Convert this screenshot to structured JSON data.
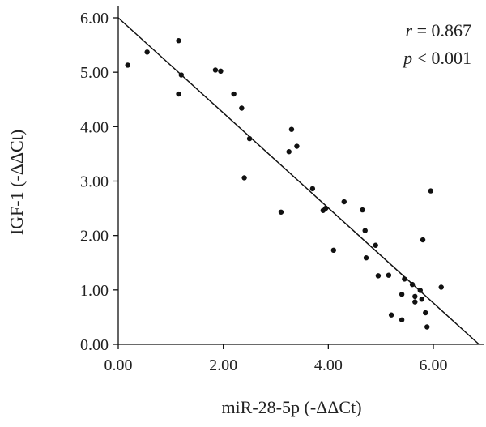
{
  "chart_data": {
    "type": "scatter",
    "xlabel": "miR-28-5p (-ΔΔCt)",
    "ylabel": "IGF-1 (-ΔΔCt)",
    "xlim": [
      0,
      7
    ],
    "ylim": [
      0,
      6.2
    ],
    "x_ticks": [
      "0.00",
      "2.00",
      "4.00",
      "6.00"
    ],
    "y_ticks": [
      "0.00",
      "1.00",
      "2.00",
      "3.00",
      "4.00",
      "5.00",
      "6.00"
    ],
    "annotation": {
      "r_symbol": "r",
      "r_text": " = 0.867",
      "p_symbol": "p",
      "p_text": " < 0.001"
    },
    "regression_line": {
      "x": [
        0.0,
        6.87
      ],
      "y": [
        6.0,
        0.0
      ]
    },
    "points": [
      {
        "x": 0.18,
        "y": 5.13
      },
      {
        "x": 0.55,
        "y": 5.37
      },
      {
        "x": 1.15,
        "y": 5.58
      },
      {
        "x": 1.2,
        "y": 4.95
      },
      {
        "x": 1.15,
        "y": 4.6
      },
      {
        "x": 1.85,
        "y": 5.04
      },
      {
        "x": 1.95,
        "y": 5.02
      },
      {
        "x": 2.2,
        "y": 4.6
      },
      {
        "x": 2.35,
        "y": 4.34
      },
      {
        "x": 2.5,
        "y": 3.78
      },
      {
        "x": 2.4,
        "y": 3.06
      },
      {
        "x": 3.1,
        "y": 2.43
      },
      {
        "x": 3.25,
        "y": 3.54
      },
      {
        "x": 3.3,
        "y": 3.95
      },
      {
        "x": 3.4,
        "y": 3.64
      },
      {
        "x": 3.7,
        "y": 2.86
      },
      {
        "x": 3.9,
        "y": 2.46
      },
      {
        "x": 3.95,
        "y": 2.5
      },
      {
        "x": 4.1,
        "y": 1.73
      },
      {
        "x": 4.3,
        "y": 2.62
      },
      {
        "x": 4.65,
        "y": 2.47
      },
      {
        "x": 4.7,
        "y": 2.09
      },
      {
        "x": 4.72,
        "y": 1.59
      },
      {
        "x": 4.9,
        "y": 1.82
      },
      {
        "x": 4.95,
        "y": 1.26
      },
      {
        "x": 5.15,
        "y": 1.27
      },
      {
        "x": 5.2,
        "y": 0.54
      },
      {
        "x": 5.4,
        "y": 0.92
      },
      {
        "x": 5.4,
        "y": 0.45
      },
      {
        "x": 5.45,
        "y": 1.2
      },
      {
        "x": 5.6,
        "y": 1.1
      },
      {
        "x": 5.65,
        "y": 0.88
      },
      {
        "x": 5.65,
        "y": 0.78
      },
      {
        "x": 5.75,
        "y": 0.99
      },
      {
        "x": 5.78,
        "y": 0.83
      },
      {
        "x": 5.8,
        "y": 1.92
      },
      {
        "x": 5.85,
        "y": 0.58
      },
      {
        "x": 5.88,
        "y": 0.32
      },
      {
        "x": 5.95,
        "y": 2.82
      },
      {
        "x": 6.15,
        "y": 1.05
      }
    ]
  }
}
